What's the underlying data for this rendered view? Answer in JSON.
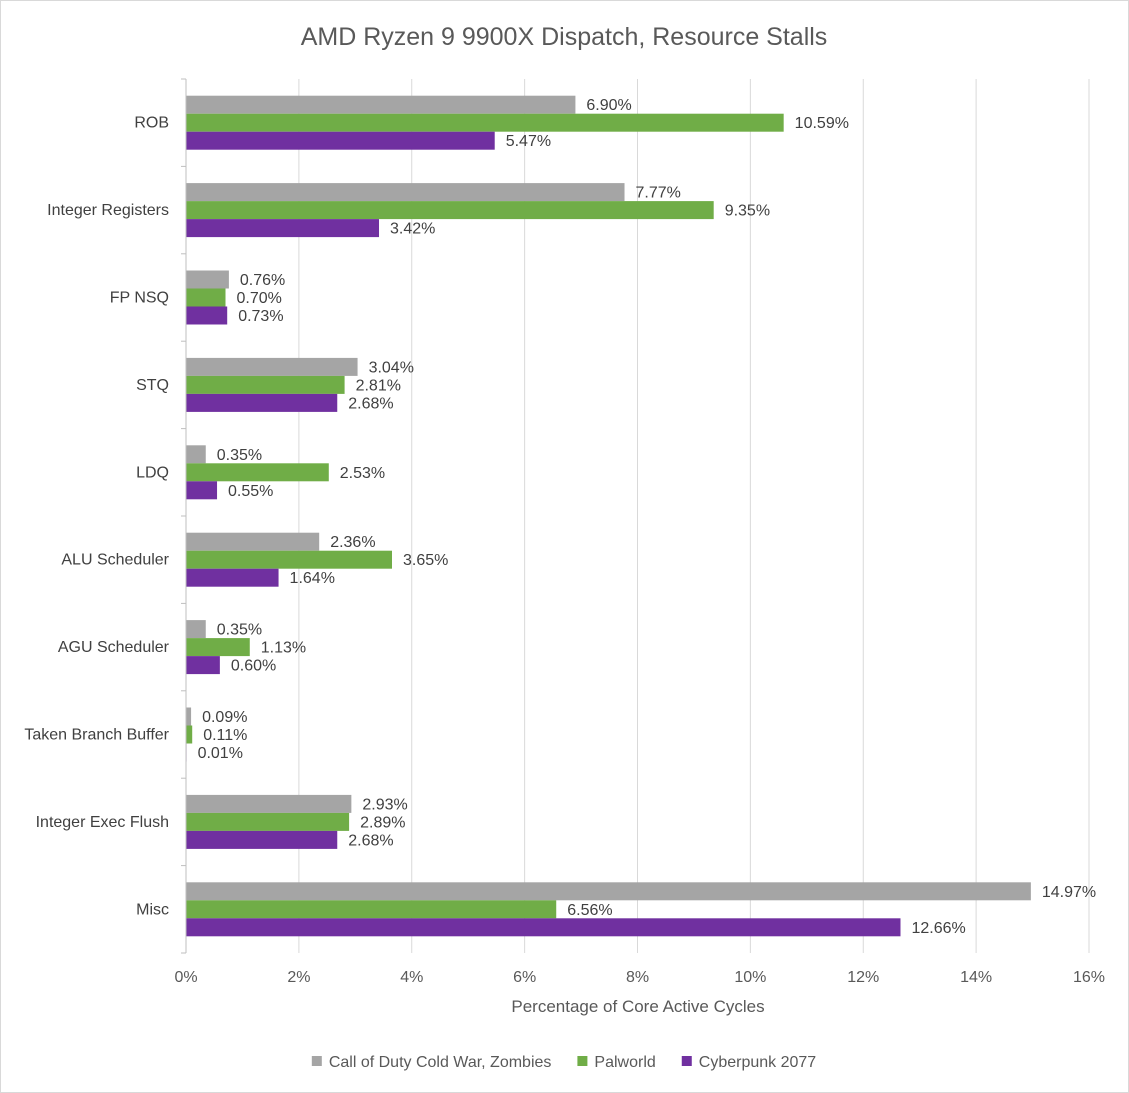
{
  "chart_data": {
    "type": "bar",
    "orientation": "horizontal",
    "title": "AMD Ryzen 9 9900X Dispatch, Resource Stalls",
    "xlabel": "Percentage of Core Active Cycles",
    "ylabel": "",
    "xlim": [
      0,
      16
    ],
    "xticks": [
      0,
      2,
      4,
      6,
      8,
      10,
      12,
      14,
      16
    ],
    "tick_suffix": "%",
    "grid": true,
    "legend_position": "bottom",
    "categories": [
      "ROB",
      "Integer Registers",
      "FP NSQ",
      "STQ",
      "LDQ",
      "ALU Scheduler",
      "AGU Scheduler",
      "Taken Branch Buffer",
      "Integer Exec Flush",
      "Misc"
    ],
    "series": [
      {
        "name": "Call of Duty Cold War, Zombies",
        "color": "#a5a5a5",
        "values": [
          6.9,
          7.77,
          0.76,
          3.04,
          0.35,
          2.36,
          0.35,
          0.09,
          2.93,
          14.97
        ],
        "labels": [
          "6.90%",
          "7.77%",
          "0.76%",
          "3.04%",
          "0.35%",
          "2.36%",
          "0.35%",
          "0.09%",
          "2.93%",
          "14.97%"
        ]
      },
      {
        "name": "Palworld",
        "color": "#70ad47",
        "values": [
          10.59,
          9.35,
          0.7,
          2.81,
          2.53,
          3.65,
          1.13,
          0.11,
          2.89,
          6.56
        ],
        "labels": [
          "10.59%",
          "9.35%",
          "0.70%",
          "2.81%",
          "2.53%",
          "3.65%",
          "1.13%",
          "0.11%",
          "2.89%",
          "6.56%"
        ]
      },
      {
        "name": "Cyberpunk 2077",
        "color": "#7030a0",
        "values": [
          5.47,
          3.42,
          0.73,
          2.68,
          0.55,
          1.64,
          0.6,
          0.01,
          2.68,
          12.66
        ],
        "labels": [
          "5.47%",
          "3.42%",
          "0.73%",
          "2.68%",
          "0.55%",
          "1.64%",
          "0.60%",
          "0.01%",
          "2.68%",
          "12.66%"
        ]
      }
    ]
  }
}
